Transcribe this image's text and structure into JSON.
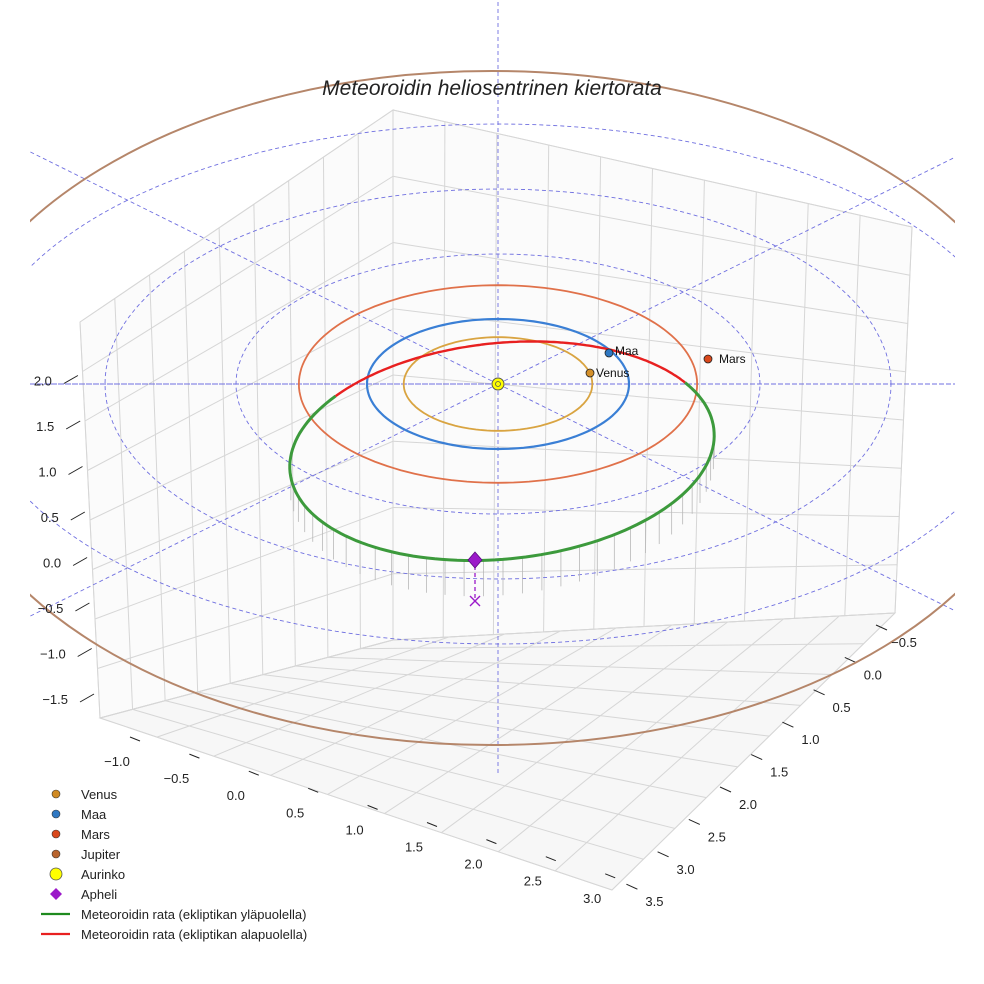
{
  "chart_data": {
    "type": "line",
    "title": "Meteoroidin heliosentrinen kiertorata",
    "xlabel": "",
    "ylabel": "",
    "zlabel": "",
    "x_ticks": [
      "−1.0",
      "−0.5",
      "0.0",
      "0.5",
      "1.0",
      "1.5",
      "2.0",
      "2.5",
      "3.0"
    ],
    "y_ticks": [
      "−0.5",
      "0.0",
      "0.5",
      "1.0",
      "1.5",
      "2.0",
      "2.5",
      "3.0",
      "3.5"
    ],
    "z_ticks": [
      "−1.5",
      "−1.0",
      "−0.5",
      "0.0",
      "0.5",
      "1.0",
      "1.5",
      "2.0"
    ],
    "grid": true,
    "legend_position": "bottom-left",
    "orbits": [
      {
        "name": "Venus",
        "radius_au": 0.72,
        "color": "#d9a441"
      },
      {
        "name": "Maa",
        "radius_au": 1.0,
        "color": "#3a7fd5"
      },
      {
        "name": "Mars",
        "radius_au": 1.52,
        "color": "#e0714a"
      },
      {
        "name": "Jupiter",
        "radius_au": 5.2,
        "color": "#b5866a"
      }
    ],
    "planets": [
      {
        "name": "Venus",
        "label": "Venus",
        "color": "#d4902a"
      },
      {
        "name": "Maa",
        "label": "Maa",
        "color": "#2f78c2"
      },
      {
        "name": "Mars",
        "label": "Mars",
        "color": "#d9481c"
      }
    ],
    "meteoroid": {
      "perihelion_au": 0.96,
      "aphelion_au": 2.2,
      "color_above": "#3c9a3c",
      "color_below": "#e82020"
    },
    "ecliptic_reference": {
      "ring_radii_au": [
        1,
        2,
        3,
        4
      ],
      "color": "#6f6fe0"
    },
    "markers": [
      {
        "name": "Aurinko",
        "color": "#ffff00"
      },
      {
        "name": "Apheli",
        "color": "#9b19c9"
      }
    ]
  },
  "legend": [
    {
      "label": "Venus",
      "kind": "dot",
      "color": "#d08a23"
    },
    {
      "label": "Maa",
      "kind": "dot",
      "color": "#2f78c2"
    },
    {
      "label": "Mars",
      "kind": "dot",
      "color": "#d9481c"
    },
    {
      "label": "Jupiter",
      "kind": "dot",
      "color": "#b8642e"
    },
    {
      "label": "Aurinko",
      "kind": "sun",
      "color": "#ffff00"
    },
    {
      "label": "Apheli",
      "kind": "diamond",
      "color": "#9b19c9"
    },
    {
      "label": "Meteoroidin rata (ekliptikan yläpuolella)",
      "kind": "line",
      "color": "#1e8a1e"
    },
    {
      "label": "Meteoroidin rata (ekliptikan alapuolella)",
      "kind": "line",
      "color": "#e82020"
    }
  ]
}
